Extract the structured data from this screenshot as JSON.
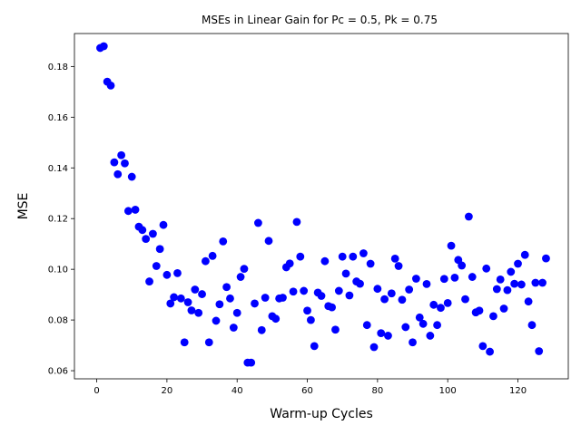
{
  "chart_data": {
    "type": "scatter",
    "title": "MSEs in Linear Gain for Pc = 0.5, Pk = 0.75",
    "xlabel": "Warm-up Cycles",
    "ylabel": "MSE",
    "xlim": [
      -6.35,
      134.35
    ],
    "ylim": [
      0.0568,
      0.193
    ],
    "xticks": [
      0,
      20,
      40,
      60,
      80,
      100,
      120
    ],
    "yticks": [
      0.06,
      0.08,
      0.1,
      0.12,
      0.14,
      0.16,
      0.18
    ],
    "grid": false,
    "legend": "none",
    "marker_color": "#0000ff",
    "x": [
      1,
      2,
      3,
      4,
      5,
      6,
      7,
      8,
      9,
      10,
      11,
      12,
      13,
      14,
      15,
      16,
      17,
      18,
      19,
      20,
      21,
      22,
      23,
      24,
      25,
      26,
      27,
      28,
      29,
      30,
      31,
      32,
      33,
      34,
      35,
      36,
      37,
      38,
      39,
      40,
      41,
      42,
      43,
      44,
      45,
      46,
      47,
      48,
      49,
      50,
      51,
      52,
      53,
      54,
      55,
      56,
      57,
      58,
      59,
      60,
      61,
      62,
      63,
      64,
      65,
      66,
      67,
      68,
      69,
      70,
      71,
      72,
      73,
      74,
      75,
      76,
      77,
      78,
      79,
      80,
      81,
      82,
      83,
      84,
      85,
      86,
      87,
      88,
      89,
      90,
      91,
      92,
      93,
      94,
      95,
      96,
      97,
      98,
      99,
      100,
      101,
      102,
      103,
      104,
      105,
      106,
      107,
      108,
      109,
      110,
      111,
      112,
      113,
      114,
      115,
      116,
      117,
      118,
      119,
      120,
      121,
      122,
      123,
      124,
      125,
      126,
      127,
      128
    ],
    "y": [
      0.1873,
      0.188,
      0.174,
      0.1725,
      0.1422,
      0.1375,
      0.145,
      0.1418,
      0.123,
      0.1365,
      0.1235,
      0.1168,
      0.1155,
      0.112,
      0.0952,
      0.114,
      0.1013,
      0.108,
      0.1175,
      0.0978,
      0.0865,
      0.089,
      0.0985,
      0.0885,
      0.0712,
      0.087,
      0.0838,
      0.092,
      0.0828,
      0.0902,
      0.1032,
      0.0712,
      0.1053,
      0.0797,
      0.0862,
      0.111,
      0.093,
      0.0885,
      0.077,
      0.0828,
      0.097,
      0.1002,
      0.0632,
      0.0632,
      0.0865,
      0.1183,
      0.076,
      0.0888,
      0.1112,
      0.0815,
      0.0805,
      0.0885,
      0.0888,
      0.1008,
      0.1023,
      0.0912,
      0.1187,
      0.105,
      0.0915,
      0.0837,
      0.08,
      0.0697,
      0.0908,
      0.0895,
      0.1032,
      0.0855,
      0.085,
      0.0762,
      0.0915,
      0.105,
      0.0983,
      0.0897,
      0.105,
      0.0952,
      0.0943,
      0.1063,
      0.078,
      0.1022,
      0.0693,
      0.0923,
      0.0748,
      0.0882,
      0.0738,
      0.0905,
      0.1042,
      0.1013,
      0.088,
      0.0772,
      0.092,
      0.0712,
      0.0963,
      0.081,
      0.0785,
      0.0942,
      0.0738,
      0.086,
      0.078,
      0.0848,
      0.0962,
      0.0867,
      0.1093,
      0.0967,
      0.1037,
      0.1015,
      0.0882,
      0.1208,
      0.097,
      0.083,
      0.0837,
      0.0697,
      0.1003,
      0.0675,
      0.0815,
      0.0922,
      0.096,
      0.0845,
      0.0918,
      0.099,
      0.0943,
      0.1022,
      0.094,
      0.1057,
      0.0873,
      0.078,
      0.0947,
      0.0677,
      0.0947,
      0.1043
    ]
  }
}
